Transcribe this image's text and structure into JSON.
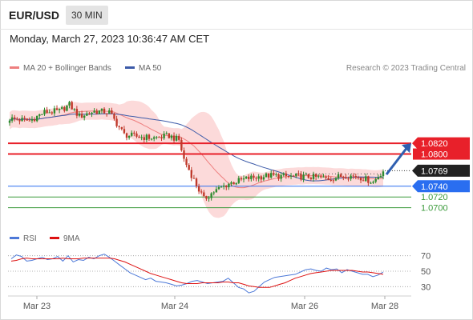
{
  "header": {
    "symbol": "EUR/USD",
    "interval": "30 MIN"
  },
  "timestamp": "Monday, March 27, 2023 10:36:47 AM CET",
  "credit": "Research © 2023 Trading Central",
  "legend": {
    "ma20": {
      "label": "MA 20 + Bollinger Bands",
      "color": "#ee7f7f"
    },
    "ma50": {
      "label": "MA 50",
      "color": "#3c5aa8"
    },
    "rsi": {
      "label": "RSI",
      "color": "#4d79d8"
    },
    "ma9": {
      "label": "9MA",
      "color": "#dd1111"
    }
  },
  "chart_data": [
    {
      "type": "candlestick",
      "title": "",
      "x_ticks": [
        "Mar 23",
        "Mar 24",
        "Mar 26",
        "Mar 28"
      ],
      "ylim": [
        1.0692,
        1.0938
      ],
      "last_price": {
        "value": 1.0769,
        "label": "1.0769"
      },
      "levels": [
        {
          "value": 1.082,
          "label": "1.0820",
          "kind": "resistance",
          "color": "#e8202a"
        },
        {
          "value": 1.08,
          "label": "1.0800",
          "kind": "resistance",
          "color": "#e8202a"
        },
        {
          "value": 1.074,
          "label": "1.0740",
          "kind": "pivot",
          "color": "#2a6ef0"
        },
        {
          "value": 1.072,
          "label": "1.0720",
          "kind": "support",
          "color": "#3a9a3a"
        },
        {
          "value": 1.07,
          "label": "1.0700",
          "kind": "support",
          "color": "#3a9a3a"
        }
      ],
      "forecast_target": 1.082,
      "colors": {
        "up": "#2e8b2e",
        "down": "#c0392b",
        "band": "#fcdada"
      }
    },
    {
      "type": "line",
      "title": "",
      "ylim": [
        20,
        80
      ],
      "y_ticks": [
        70,
        50,
        30
      ],
      "series": [
        {
          "name": "RSI",
          "values": [
            66,
            71,
            69,
            63,
            64,
            66,
            68,
            65,
            66,
            69,
            63,
            70,
            62,
            65,
            64,
            68,
            66,
            70,
            72,
            68,
            63,
            58,
            53,
            48,
            45,
            42,
            39,
            41,
            37,
            36,
            35,
            33,
            31,
            32,
            34,
            37,
            38,
            36,
            34,
            35,
            36,
            37,
            41,
            35,
            29,
            27,
            22,
            24,
            30,
            36,
            39,
            42,
            43,
            44,
            45,
            46,
            49,
            52,
            53,
            51,
            50,
            54,
            52,
            53,
            48,
            52,
            50,
            48,
            46,
            46,
            43,
            45,
            49
          ]
        },
        {
          "name": "9MA",
          "values": [
            63,
            64,
            66,
            67,
            66,
            66,
            66,
            66,
            66,
            66,
            67,
            66,
            66,
            66,
            67,
            67,
            67,
            67,
            67,
            67,
            66,
            64,
            62,
            59,
            56,
            53,
            50,
            47,
            45,
            43,
            41,
            39,
            37,
            35,
            34,
            34,
            34,
            35,
            35,
            35,
            35,
            36,
            36,
            35,
            35,
            33,
            31,
            30,
            29,
            29,
            29,
            31,
            33,
            35,
            38,
            41,
            43,
            45,
            47,
            48,
            49,
            50,
            51,
            51,
            51,
            51,
            51,
            50,
            49,
            49,
            48,
            47,
            46
          ]
        }
      ]
    }
  ]
}
